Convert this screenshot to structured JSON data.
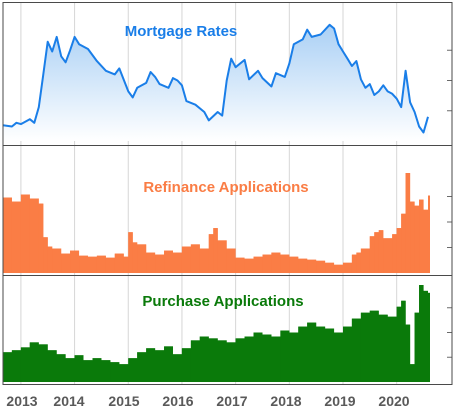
{
  "chart_data": {
    "type": "area",
    "x_start": "2012-09",
    "x_end": "2020-08",
    "x_axis_labels": [
      "2013",
      "2014",
      "2015",
      "2016",
      "2017",
      "2018",
      "2019",
      "2020"
    ],
    "panels": [
      {
        "title": "Mortgage Rates",
        "style": "area",
        "color": "#1a7ee8",
        "fill_top": "#aad0f5",
        "fill_bottom": "#ffffff",
        "ylim": [
          0,
          100
        ],
        "points": [
          [
            "2012-09",
            13
          ],
          [
            "2012-11",
            12
          ],
          [
            "2012-12",
            15
          ],
          [
            "2013-01",
            14
          ],
          [
            "2013-03",
            18
          ],
          [
            "2013-04",
            15
          ],
          [
            "2013-05",
            28
          ],
          [
            "2013-06",
            55
          ],
          [
            "2013-07",
            82
          ],
          [
            "2013-08",
            74
          ],
          [
            "2013-09",
            86
          ],
          [
            "2013-10",
            70
          ],
          [
            "2013-11",
            65
          ],
          [
            "2013-12",
            75
          ],
          [
            "2014-01",
            86
          ],
          [
            "2014-02",
            80
          ],
          [
            "2014-04",
            76
          ],
          [
            "2014-06",
            66
          ],
          [
            "2014-08",
            58
          ],
          [
            "2014-10",
            55
          ],
          [
            "2014-11",
            60
          ],
          [
            "2015-01",
            41
          ],
          [
            "2015-02",
            36
          ],
          [
            "2015-03",
            44
          ],
          [
            "2015-05",
            48
          ],
          [
            "2015-06",
            57
          ],
          [
            "2015-07",
            53
          ],
          [
            "2015-08",
            47
          ],
          [
            "2015-10",
            44
          ],
          [
            "2015-11",
            52
          ],
          [
            "2015-12",
            50
          ],
          [
            "2016-01",
            46
          ],
          [
            "2016-02",
            33
          ],
          [
            "2016-04",
            30
          ],
          [
            "2016-06",
            24
          ],
          [
            "2016-07",
            17
          ],
          [
            "2016-09",
            24
          ],
          [
            "2016-10",
            21
          ],
          [
            "2016-11",
            50
          ],
          [
            "2016-12",
            68
          ],
          [
            "2017-01",
            61
          ],
          [
            "2017-03",
            67
          ],
          [
            "2017-04",
            51
          ],
          [
            "2017-06",
            58
          ],
          [
            "2017-07",
            52
          ],
          [
            "2017-09",
            45
          ],
          [
            "2017-10",
            56
          ],
          [
            "2017-12",
            53
          ],
          [
            "2018-01",
            64
          ],
          [
            "2018-02",
            80
          ],
          [
            "2018-04",
            84
          ],
          [
            "2018-05",
            92
          ],
          [
            "2018-06",
            86
          ],
          [
            "2018-08",
            88
          ],
          [
            "2018-10",
            96
          ],
          [
            "2018-11",
            93
          ],
          [
            "2018-12",
            80
          ],
          [
            "2019-01",
            74
          ],
          [
            "2019-02",
            68
          ],
          [
            "2019-03",
            62
          ],
          [
            "2019-04",
            66
          ],
          [
            "2019-05",
            51
          ],
          [
            "2019-06",
            44
          ],
          [
            "2019-07",
            47
          ],
          [
            "2019-08",
            38
          ],
          [
            "2019-09",
            41
          ],
          [
            "2019-10",
            46
          ],
          [
            "2019-11",
            41
          ],
          [
            "2019-12",
            39
          ],
          [
            "2020-01",
            35
          ],
          [
            "2020-02",
            28
          ],
          [
            "2020-03",
            58
          ],
          [
            "2020-04",
            32
          ],
          [
            "2020-05",
            24
          ],
          [
            "2020-06",
            12
          ],
          [
            "2020-07",
            7
          ],
          [
            "2020-08",
            20
          ]
        ]
      },
      {
        "title": "Refinance Applications",
        "style": "bars",
        "color": "#fa7d45",
        "ylim": [
          0,
          100
        ],
        "points": [
          [
            "2012-09",
            74
          ],
          [
            "2012-11",
            70
          ],
          [
            "2013-01",
            77
          ],
          [
            "2013-03",
            73
          ],
          [
            "2013-05",
            68
          ],
          [
            "2013-06",
            35
          ],
          [
            "2013-07",
            26
          ],
          [
            "2013-08",
            24
          ],
          [
            "2013-10",
            19
          ],
          [
            "2013-12",
            22
          ],
          [
            "2014-02",
            17
          ],
          [
            "2014-04",
            16
          ],
          [
            "2014-06",
            17
          ],
          [
            "2014-08",
            15
          ],
          [
            "2014-10",
            19
          ],
          [
            "2014-12",
            16
          ],
          [
            "2015-01",
            40
          ],
          [
            "2015-02",
            30
          ],
          [
            "2015-03",
            28
          ],
          [
            "2015-05",
            20
          ],
          [
            "2015-07",
            18
          ],
          [
            "2015-09",
            22
          ],
          [
            "2015-11",
            20
          ],
          [
            "2016-01",
            26
          ],
          [
            "2016-03",
            28
          ],
          [
            "2016-05",
            24
          ],
          [
            "2016-07",
            38
          ],
          [
            "2016-08",
            44
          ],
          [
            "2016-09",
            32
          ],
          [
            "2016-11",
            24
          ],
          [
            "2017-01",
            15
          ],
          [
            "2017-03",
            14
          ],
          [
            "2017-05",
            16
          ],
          [
            "2017-07",
            18
          ],
          [
            "2017-09",
            20
          ],
          [
            "2017-11",
            18
          ],
          [
            "2018-01",
            16
          ],
          [
            "2018-03",
            14
          ],
          [
            "2018-05",
            13
          ],
          [
            "2018-07",
            12
          ],
          [
            "2018-09",
            10
          ],
          [
            "2018-11",
            8
          ],
          [
            "2019-01",
            10
          ],
          [
            "2019-03",
            18
          ],
          [
            "2019-04",
            20
          ],
          [
            "2019-05",
            24
          ],
          [
            "2019-07",
            36
          ],
          [
            "2019-08",
            40
          ],
          [
            "2019-09",
            42
          ],
          [
            "2019-10",
            34
          ],
          [
            "2019-12",
            38
          ],
          [
            "2020-01",
            44
          ],
          [
            "2020-02",
            58
          ],
          [
            "2020-03",
            98
          ],
          [
            "2020-04",
            70
          ],
          [
            "2020-05",
            66
          ],
          [
            "2020-06",
            72
          ],
          [
            "2020-07",
            62
          ],
          [
            "2020-08",
            76
          ]
        ]
      },
      {
        "title": "Purchase Applications",
        "style": "bars",
        "color": "#0a7a0a",
        "ylim": [
          0,
          100
        ],
        "points": [
          [
            "2012-09",
            30
          ],
          [
            "2012-11",
            32
          ],
          [
            "2013-01",
            35
          ],
          [
            "2013-03",
            40
          ],
          [
            "2013-05",
            38
          ],
          [
            "2013-07",
            32
          ],
          [
            "2013-09",
            28
          ],
          [
            "2013-11",
            24
          ],
          [
            "2014-01",
            27
          ],
          [
            "2014-03",
            22
          ],
          [
            "2014-05",
            24
          ],
          [
            "2014-07",
            22
          ],
          [
            "2014-09",
            20
          ],
          [
            "2014-11",
            18
          ],
          [
            "2015-01",
            24
          ],
          [
            "2015-03",
            30
          ],
          [
            "2015-05",
            34
          ],
          [
            "2015-07",
            32
          ],
          [
            "2015-09",
            36
          ],
          [
            "2015-11",
            28
          ],
          [
            "2016-01",
            34
          ],
          [
            "2016-03",
            42
          ],
          [
            "2016-05",
            46
          ],
          [
            "2016-07",
            44
          ],
          [
            "2016-09",
            42
          ],
          [
            "2016-11",
            40
          ],
          [
            "2017-01",
            44
          ],
          [
            "2017-03",
            46
          ],
          [
            "2017-05",
            50
          ],
          [
            "2017-07",
            48
          ],
          [
            "2017-09",
            46
          ],
          [
            "2017-11",
            52
          ],
          [
            "2018-01",
            50
          ],
          [
            "2018-03",
            56
          ],
          [
            "2018-05",
            60
          ],
          [
            "2018-07",
            56
          ],
          [
            "2018-09",
            54
          ],
          [
            "2018-11",
            50
          ],
          [
            "2019-01",
            56
          ],
          [
            "2019-03",
            64
          ],
          [
            "2019-05",
            70
          ],
          [
            "2019-07",
            72
          ],
          [
            "2019-09",
            68
          ],
          [
            "2019-11",
            66
          ],
          [
            "2020-01",
            76
          ],
          [
            "2020-02",
            82
          ],
          [
            "2020-03",
            58
          ],
          [
            "2020-04",
            18
          ],
          [
            "2020-05",
            70
          ],
          [
            "2020-06",
            98
          ],
          [
            "2020-07",
            92
          ],
          [
            "2020-08",
            90
          ]
        ]
      }
    ]
  }
}
